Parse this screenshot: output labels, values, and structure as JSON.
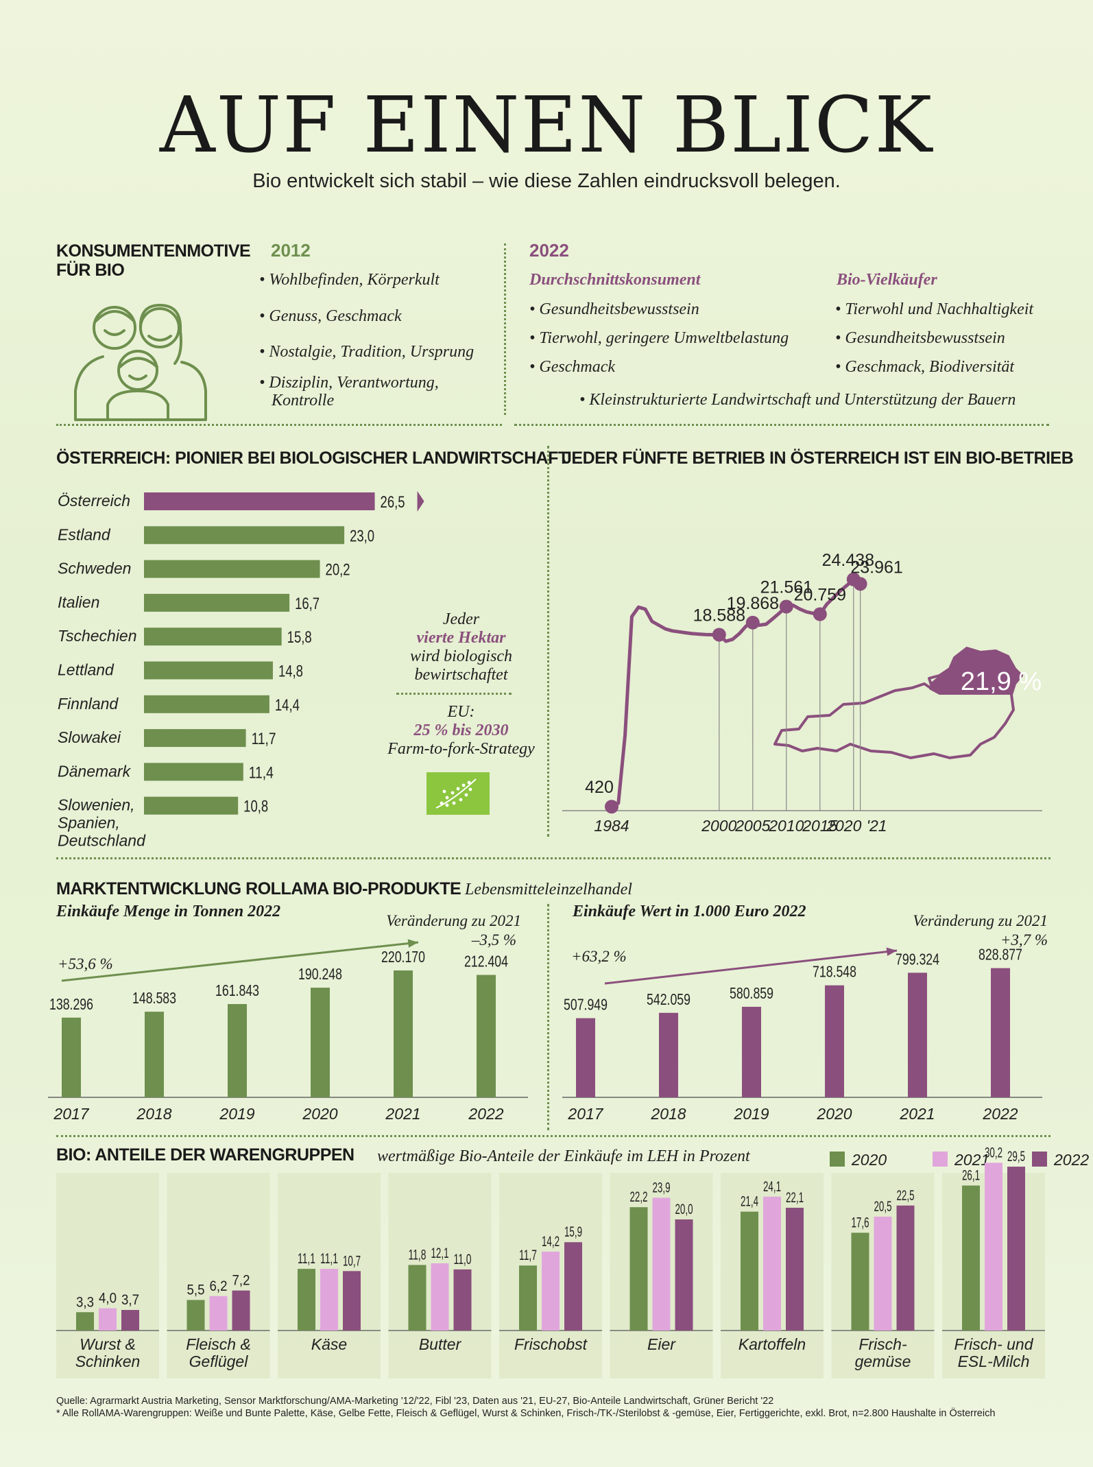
{
  "header": {
    "title": "AUF EINEN BLICK",
    "subtitle": "Bio entwickelt sich stabil – wie diese Zahlen eindrucksvoll belegen."
  },
  "motives": {
    "title_line1": "KONSUMENTENMOTIVE",
    "title_line2": "FÜR BIO",
    "y2012": {
      "label": "2012",
      "items": [
        "• Wohlbefinden, Körperkult",
        "• Genuss, Geschmack",
        "• Nostalgie, Tradition, Ursprung",
        "• Disziplin, Verantwortung,",
        "Kontrolle"
      ]
    },
    "y2022": {
      "label": "2022",
      "avg_title": "Durchschnittskonsument",
      "avg_items": [
        "• Gesundheitsbewusstsein",
        "• Tierwohl, geringere Umweltbelastung",
        "• Geschmack"
      ],
      "heavy_title": "Bio-Vielkäufer",
      "heavy_items": [
        "• Tierwohl und Nachhaltigkeit",
        "• Gesundheitsbewusstsein",
        "• Geschmack, Biodiversität"
      ],
      "shared_item": "• Kleinstrukturierte Landwirtschaft und Unterstützung der Bauern"
    },
    "icon": "family-icon"
  },
  "pioneer": {
    "title": "ÖSTERREICH: PIONIER BEI BIOLOGISCHER LANDWIRTSCHAFT",
    "note_line1": "Jeder",
    "note_line2": "vierte Hektar",
    "note_line3": "wird biologisch",
    "note_line4": "bewirtschaftet",
    "eu_line1": "EU:",
    "eu_line2": "25 % bis 2030",
    "eu_line3": "Farm-to-fork-Strategy",
    "eu_icon": "eu-organic-leaf-icon"
  },
  "farms": {
    "title": "JEDER FÜNFTE BETRIEB IN ÖSTERREICH IST EIN BIO-BETRIEB",
    "share_label": "21,9 %",
    "map_icon": "austria-map-icon"
  },
  "market": {
    "title": "MARKTENTWICKLUNG ROLLAMA BIO-PRODUKTE",
    "segment": "Lebensmitteleinzelhandel",
    "qty_subtitle": "Einkäufe Menge in Tonnen 2022",
    "qty_change_label": "Veränderung zu 2021",
    "qty_change_value": "–3,5 %",
    "qty_growth": "+53,6 %",
    "val_subtitle": "Einkäufe Wert in 1.000 Euro 2022",
    "val_change_label": "Veränderung zu 2021",
    "val_change_value": "+3,7 %",
    "val_growth": "+63,2 %"
  },
  "shares": {
    "title": "BIO: ANTEILE DER WARENGRUPPEN",
    "caption": "wertmäßige Bio-Anteile der Einkäufe im LEH in Prozent"
  },
  "footer": {
    "source": "Quelle: Agrarmarkt Austria Marketing, Sensor Marktforschung/AMA-Marketing '12/'22, Fibl '23, Daten aus '21, EU-27, Bio-Anteile Landwirtschaft, Grüner Bericht '22",
    "note": "* Alle RollAMA-Warengruppen: Weiße und Bunte Palette, Käse, Gelbe Fette, Fleisch & Geflügel, Wurst & Schinken, Frisch-/TK-/Sterilobst & -gemüse, Eier, Fertiggerichte, exkl. Brot, n=2.800 Haushalte in Österreich"
  },
  "colors": {
    "green": "#6e8f4e",
    "purple": "#8a4f7d",
    "pink": "#e0a6dc",
    "panel": "#dfe8c8"
  },
  "chart_data": [
    {
      "id": "organic_area_share",
      "type": "bar",
      "orientation": "horizontal",
      "categories": [
        "Österreich",
        "Estland",
        "Schweden",
        "Italien",
        "Tschechien",
        "Lettland",
        "Finnland",
        "Slowakei",
        "Dänemark",
        "Slowenien, Spanien, Deutschland"
      ],
      "values": [
        26.5,
        23.0,
        20.2,
        16.7,
        15.8,
        14.8,
        14.4,
        11.7,
        11.4,
        10.8
      ],
      "value_labels": [
        "26,5",
        "23,0",
        "20,2",
        "16,7",
        "15,8",
        "14,8",
        "14,4",
        "11,7",
        "11,4",
        "10,8"
      ],
      "highlight": "Österreich"
    },
    {
      "id": "organic_farms",
      "type": "line",
      "x_ticks": [
        "1984",
        "2000",
        "2005",
        "2010",
        "2015",
        "2020",
        "'21"
      ],
      "labeled_points": [
        {
          "x": 1984,
          "y": 420,
          "label": "420"
        },
        {
          "x": 2000,
          "y": 18588,
          "label": "18.588"
        },
        {
          "x": 2005,
          "y": 19868,
          "label": "19.868"
        },
        {
          "x": 2010,
          "y": 21561,
          "label": "21.561"
        },
        {
          "x": 2015,
          "y": 20759,
          "label": "20.759"
        },
        {
          "x": 2020,
          "y": 24438,
          "label": "24.438"
        },
        {
          "x": 2021,
          "y": 23961,
          "label": "23.961"
        }
      ],
      "series": [
        {
          "x": [
            1984,
            1985,
            1986,
            1987,
            1988,
            1989,
            1990,
            1991,
            1992,
            1993,
            1994,
            1995,
            1996,
            1997,
            1998,
            1999,
            2000,
            2001,
            2002,
            2003,
            2004,
            2005,
            2006,
            2007,
            2008,
            2009,
            2010,
            2011,
            2012,
            2013,
            2014,
            2015,
            2016,
            2017,
            2018,
            2019,
            2020,
            2021
          ],
          "y": [
            420,
            800,
            8000,
            20500,
            21500,
            21300,
            20000,
            19600,
            19200,
            19000,
            18900,
            18800,
            18700,
            18650,
            18600,
            18590,
            18588,
            17900,
            18100,
            18700,
            19500,
            19868,
            19600,
            19700,
            20300,
            20900,
            21561,
            21700,
            21300,
            21000,
            20850,
            20759,
            21800,
            22500,
            23200,
            23800,
            24438,
            23961
          ]
        }
      ]
    },
    {
      "id": "purchase_quantity",
      "type": "bar",
      "categories": [
        "2017",
        "2018",
        "2019",
        "2020",
        "2021",
        "2022"
      ],
      "values": [
        138296,
        148583,
        161843,
        190248,
        220170,
        212404
      ],
      "value_labels": [
        "138.296",
        "148.583",
        "161.843",
        "190.248",
        "220.170",
        "212.404"
      ]
    },
    {
      "id": "purchase_value",
      "type": "bar",
      "categories": [
        "2017",
        "2018",
        "2019",
        "2020",
        "2021",
        "2022"
      ],
      "values": [
        507949,
        542059,
        580859,
        718548,
        799324,
        828877
      ],
      "value_labels": [
        "507.949",
        "542.059",
        "580.859",
        "718.548",
        "799.324",
        "828.877"
      ]
    },
    {
      "id": "product_group_shares",
      "type": "bar",
      "categories": [
        "Wurst & Schinken",
        "Fleisch & Geflügel",
        "Käse",
        "Butter",
        "Frischobst",
        "Eier",
        "Kartoffeln",
        "Frisch-gemüse",
        "Frisch- und ESL-Milch"
      ],
      "category_lines": [
        [
          "Wurst &",
          "Schinken"
        ],
        [
          "Fleisch &",
          "Geflügel"
        ],
        [
          "Käse"
        ],
        [
          "Butter"
        ],
        [
          "Frischobst"
        ],
        [
          "Eier"
        ],
        [
          "Kartoffeln"
        ],
        [
          "Frisch-",
          "gemüse"
        ],
        [
          "Frisch- und",
          "ESL-Milch"
        ]
      ],
      "series": [
        {
          "name": "2020",
          "values": [
            3.3,
            5.5,
            11.1,
            11.8,
            11.7,
            22.2,
            21.4,
            17.6,
            26.1
          ],
          "labels": [
            "3,3",
            "5,5",
            "11,1",
            "11,8",
            "11,7",
            "22,2",
            "21,4",
            "17,6",
            "26,1"
          ]
        },
        {
          "name": "2021",
          "values": [
            4.0,
            6.2,
            11.1,
            12.1,
            14.2,
            23.9,
            24.1,
            20.5,
            30.2
          ],
          "labels": [
            "4,0",
            "6,2",
            "11,1",
            "12,1",
            "14,2",
            "23,9",
            "24,1",
            "20,5",
            "30,2"
          ]
        },
        {
          "name": "2022",
          "values": [
            3.7,
            7.2,
            10.7,
            11.0,
            15.9,
            20.0,
            22.1,
            22.5,
            29.5
          ],
          "labels": [
            "3,7",
            "7,2",
            "10,7",
            "11,0",
            "15,9",
            "20,0",
            "22,1",
            "22,5",
            "29,5"
          ]
        }
      ],
      "legend_placement": "top-right"
    }
  ]
}
